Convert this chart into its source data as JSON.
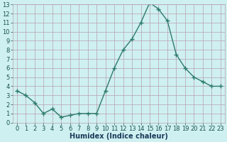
{
  "x": [
    0,
    1,
    2,
    3,
    4,
    5,
    6,
    7,
    8,
    9,
    10,
    11,
    12,
    13,
    14,
    15,
    16,
    17,
    18,
    19,
    20,
    21,
    22,
    23
  ],
  "y": [
    3.5,
    3.0,
    2.2,
    1.0,
    1.5,
    0.6,
    0.8,
    1.0,
    1.0,
    1.0,
    3.5,
    6.0,
    8.0,
    9.2,
    11.0,
    13.2,
    12.5,
    11.2,
    7.5,
    6.0,
    5.0,
    4.5,
    4.0,
    4.0
  ],
  "line_color": "#2d7a6a",
  "marker": "+",
  "markersize": 4,
  "markeredgewidth": 1.0,
  "linewidth": 1.0,
  "xlabel": "Humidex (Indice chaleur)",
  "xlim": [
    -0.5,
    23.5
  ],
  "ylim": [
    0,
    13
  ],
  "yticks": [
    0,
    1,
    2,
    3,
    4,
    5,
    6,
    7,
    8,
    9,
    10,
    11,
    12,
    13
  ],
  "xticks": [
    0,
    1,
    2,
    3,
    4,
    5,
    6,
    7,
    8,
    9,
    10,
    11,
    12,
    13,
    14,
    15,
    16,
    17,
    18,
    19,
    20,
    21,
    22,
    23
  ],
  "bg_color": "#cff0f0",
  "grid_color": "#b8a0b0",
  "xlabel_fontsize": 7,
  "tick_fontsize": 6,
  "tick_color": "#1a5050",
  "xlabel_color": "#1a3a5a"
}
